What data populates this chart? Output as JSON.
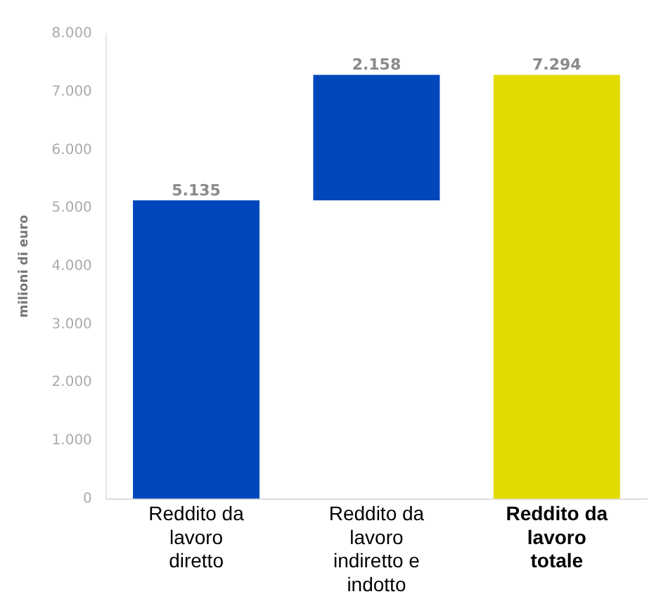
{
  "chart_data": {
    "type": "bar",
    "ylabel": "milioni di euro",
    "categories": [
      "Reddito da lavoro diretto",
      "Reddito da lavoro indiretto e indotto",
      "Reddito da lavoro totale"
    ],
    "values": [
      5135,
      2158,
      7294
    ],
    "base": [
      0,
      5135,
      0
    ],
    "colors": [
      "#0047bb",
      "#0047bb",
      "#e3db00"
    ],
    "value_labels": [
      "5.135",
      "2.158",
      "7.294"
    ],
    "ylim": [
      0,
      8000
    ],
    "yticks": [
      {
        "value": 0,
        "label": "0"
      },
      {
        "value": 1000,
        "label": "1.000"
      },
      {
        "value": 2000,
        "label": "2.000"
      },
      {
        "value": 3000,
        "label": "3.000"
      },
      {
        "value": 4000,
        "label": "4.000"
      },
      {
        "value": 5000,
        "label": "5.000"
      },
      {
        "value": 6000,
        "label": "6.000"
      },
      {
        "value": 7000,
        "label": "7.000"
      },
      {
        "value": 8000,
        "label": "8.000"
      }
    ],
    "grid": false,
    "legend": false
  }
}
